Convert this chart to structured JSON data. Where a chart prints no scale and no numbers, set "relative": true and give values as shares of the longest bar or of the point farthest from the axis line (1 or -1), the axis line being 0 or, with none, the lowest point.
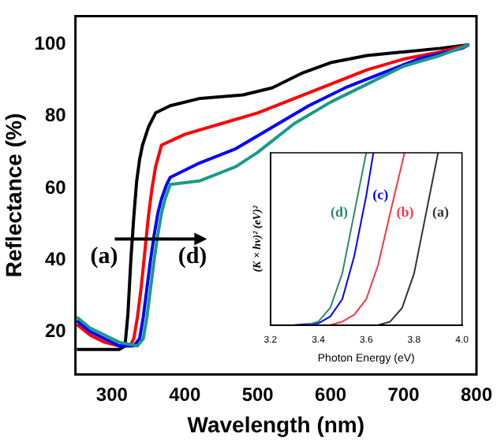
{
  "chart_data": [
    {
      "type": "line",
      "xlabel": "Wavelength (nm)",
      "ylabel": "Reflectance (%)",
      "xlim": [
        250,
        800
      ],
      "ylim": [
        8,
        108
      ],
      "xticks": [
        300,
        400,
        500,
        600,
        700,
        800
      ],
      "yticks": [
        20,
        40,
        60,
        80,
        100
      ],
      "grid": false,
      "legend": false,
      "line_style": "solid",
      "marker": "none",
      "annotations": [
        "(a)",
        "(d)"
      ],
      "series": [
        {
          "color": "#000000",
          "x": [
            252,
            270,
            290,
            310,
            318,
            322,
            326,
            330,
            334,
            338,
            342,
            350,
            360,
            380,
            420,
            480,
            520,
            560,
            600,
            650,
            700,
            750,
            790
          ],
          "values": [
            15,
            15,
            15,
            15,
            16,
            25,
            40,
            52,
            62,
            68,
            72,
            77,
            81,
            83,
            85,
            86,
            88,
            92,
            95,
            97,
            98,
            99,
            100
          ]
        },
        {
          "color": "#ff0000",
          "x": [
            252,
            270,
            290,
            310,
            325,
            330,
            335,
            340,
            345,
            350,
            355,
            360,
            368,
            400,
            450,
            500,
            550,
            600,
            650,
            700,
            750,
            790
          ],
          "values": [
            22,
            19,
            17,
            16,
            16,
            18,
            24,
            32,
            42,
            52,
            60,
            66,
            72,
            75,
            78,
            81,
            85,
            89,
            93,
            96,
            98,
            100
          ]
        },
        {
          "color": "#0000ff",
          "x": [
            252,
            270,
            290,
            310,
            330,
            338,
            343,
            348,
            353,
            358,
            363,
            368,
            375,
            380,
            420,
            470,
            520,
            570,
            620,
            670,
            720,
            780,
            790
          ],
          "values": [
            23,
            20,
            18,
            16,
            16,
            18,
            24,
            32,
            40,
            47,
            53,
            57,
            61,
            63,
            67,
            71,
            77,
            83,
            88,
            92,
            96,
            99,
            100
          ]
        },
        {
          "color": "#1a9a8a",
          "x": [
            252,
            270,
            290,
            310,
            335,
            343,
            348,
            353,
            358,
            363,
            368,
            373,
            380,
            420,
            470,
            500,
            550,
            600,
            650,
            700,
            750,
            790
          ],
          "values": [
            24,
            21,
            19,
            17,
            16,
            18,
            24,
            32,
            40,
            47,
            53,
            57,
            61,
            62,
            66,
            70,
            78,
            84,
            89,
            94,
            97,
            100
          ]
        }
      ]
    },
    {
      "type": "line",
      "xlabel": "Photon Energy (eV)",
      "ylabel": "(K × hν)² (eV)²",
      "relative": true,
      "tick_labels": "x",
      "xlim": [
        3.2,
        4.0
      ],
      "xticks": [
        3.2,
        3.4,
        3.6,
        3.8,
        {
          "value": 4,
          "label": "4.0"
        }
      ],
      "grid": false,
      "legend": false,
      "line_style": "solid",
      "marker": "none",
      "series": [
        {
          "name": "(a)",
          "color": "#333333",
          "x": [
            3.65,
            3.7,
            3.75,
            3.8,
            3.85,
            3.9
          ],
          "values": [
            0,
            0.02,
            0.1,
            0.3,
            0.65,
            1
          ]
        },
        {
          "name": "(b)",
          "color": "#ff3344",
          "x": [
            3.45,
            3.5,
            3.55,
            3.6,
            3.65,
            3.7,
            3.76
          ],
          "values": [
            0,
            0.02,
            0.06,
            0.15,
            0.35,
            0.65,
            1
          ]
        },
        {
          "name": "(c)",
          "color": "#0000ff",
          "x": [
            3.3,
            3.4,
            3.45,
            3.5,
            3.55,
            3.6,
            3.63
          ],
          "values": [
            0,
            0.01,
            0.05,
            0.15,
            0.4,
            0.75,
            1
          ]
        },
        {
          "name": "(d)",
          "color": "#2a8a6a",
          "x": [
            3.35,
            3.4,
            3.45,
            3.5,
            3.55,
            3.6
          ],
          "values": [
            0,
            0.02,
            0.1,
            0.3,
            0.65,
            1
          ]
        }
      ]
    }
  ]
}
